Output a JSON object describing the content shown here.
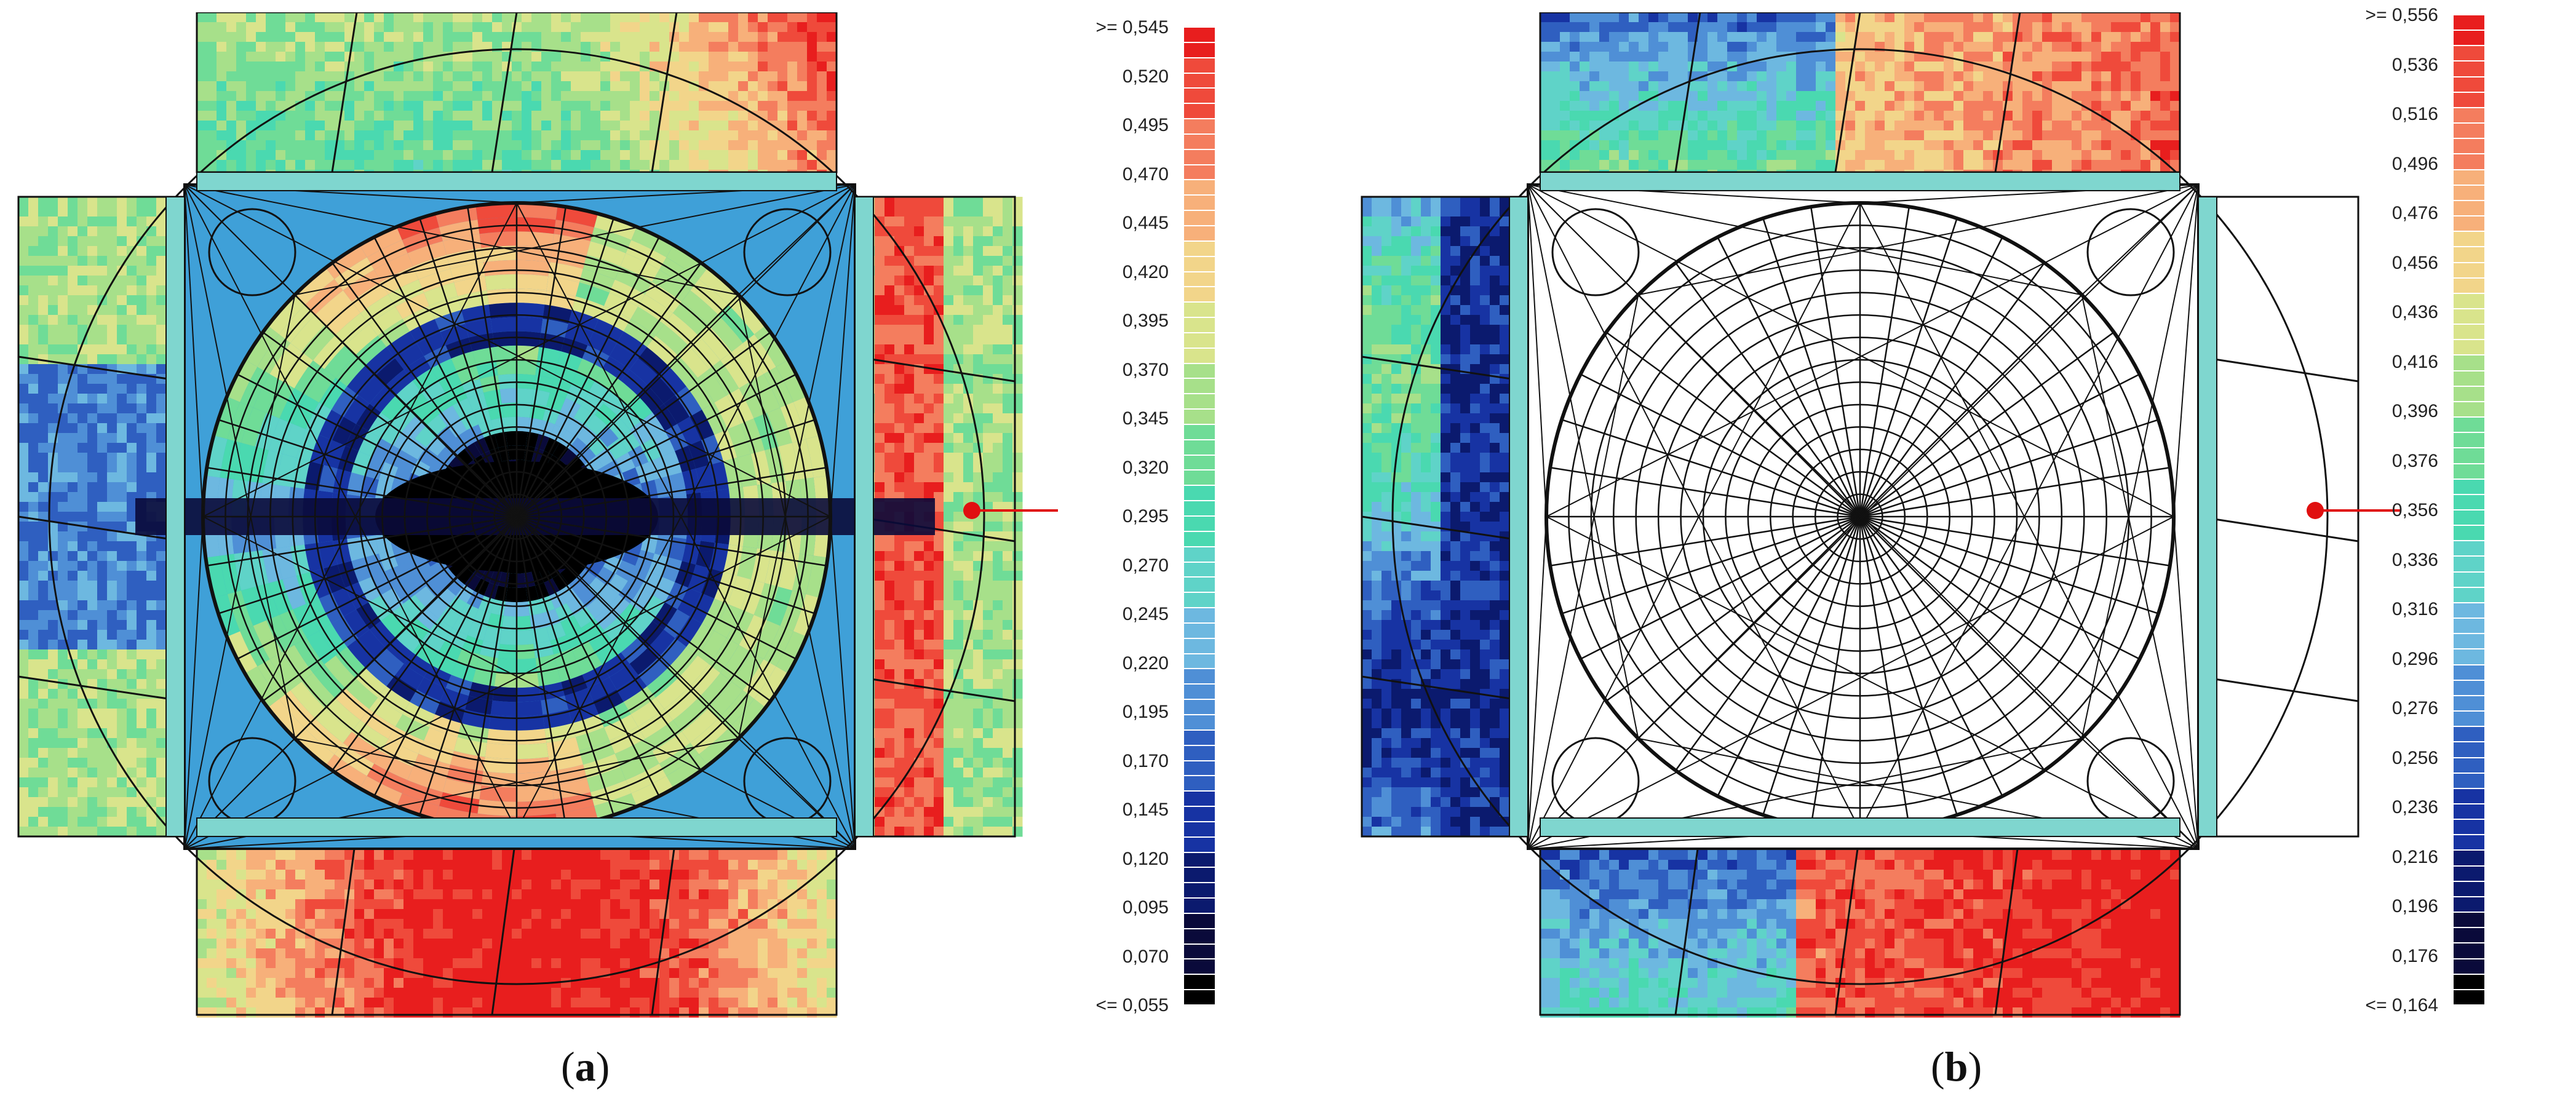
{
  "panels": [
    {
      "id": "a",
      "caption_letter": "a",
      "legend": {
        "labels": [
          ">= 0,545",
          "0,520",
          "0,495",
          "0,470",
          "0,445",
          "0,420",
          "0,395",
          "0,370",
          "0,345",
          "0,320",
          "0,295",
          "0,270",
          "0,245",
          "0,220",
          "0,195",
          "0,170",
          "0,145",
          "0,120",
          "0,095",
          "0,070",
          "<= 0,055"
        ],
        "min": 0.055,
        "max": 0.545
      },
      "dome_colored": true
    },
    {
      "id": "b",
      "caption_letter": "b",
      "legend": {
        "labels": [
          ">= 0,556",
          "0,536",
          "0,516",
          "0,496",
          "0,476",
          "0,456",
          "0,436",
          "0,416",
          "0,396",
          "0,376",
          "0,356",
          "0,336",
          "0,316",
          "0,296",
          "0,276",
          "0,256",
          "0,236",
          "0,216",
          "0,196",
          "0,176",
          "<= 0,164"
        ],
        "min": 0.164,
        "max": 0.556
      },
      "dome_colored": false
    }
  ],
  "colors": {
    "scale": [
      "#000000",
      "#0a0a3a",
      "#0b1a6e",
      "#1733a3",
      "#2f5fc0",
      "#4f8fd6",
      "#6db8e0",
      "#5fd3c8",
      "#4ad9b0",
      "#6fdc97",
      "#a7e08a",
      "#d9e48c",
      "#f2d58a",
      "#f7b07a",
      "#f47d5e",
      "#ef4a3b",
      "#e81e1e"
    ],
    "line": "#111111",
    "marker": "#e01010"
  }
}
